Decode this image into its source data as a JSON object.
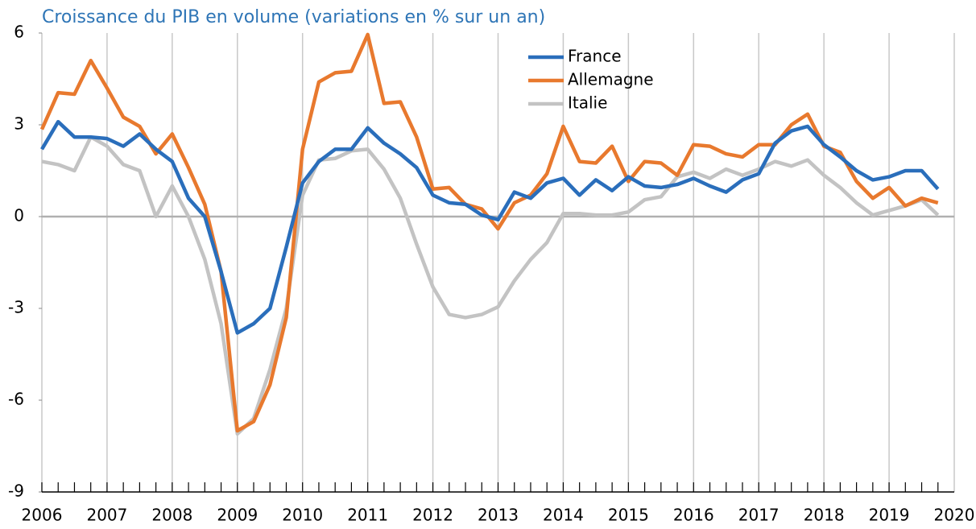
{
  "chart_data": {
    "type": "line",
    "title": "Croissance du PIB en volume (variations en % sur un an)",
    "x": [
      2006,
      2006.25,
      2006.5,
      2006.75,
      2007,
      2007.25,
      2007.5,
      2007.75,
      2008,
      2008.25,
      2008.5,
      2008.75,
      2009,
      2009.25,
      2009.5,
      2009.75,
      2010,
      2010.25,
      2010.5,
      2010.75,
      2011,
      2011.25,
      2011.5,
      2011.75,
      2012,
      2012.25,
      2012.5,
      2012.75,
      2013,
      2013.25,
      2013.5,
      2013.75,
      2014,
      2014.25,
      2014.5,
      2014.75,
      2015,
      2015.25,
      2015.5,
      2015.75,
      2016,
      2016.25,
      2016.5,
      2016.75,
      2017,
      2017.25,
      2017.5,
      2017.75,
      2018,
      2018.25,
      2018.5,
      2018.75,
      2019,
      2019.25,
      2019.5,
      2019.75
    ],
    "series": [
      {
        "name": "France",
        "color": "#2a6ebb",
        "values": [
          2.2,
          3.1,
          2.6,
          2.6,
          2.55,
          2.3,
          2.7,
          2.2,
          1.8,
          0.6,
          0.0,
          -1.8,
          -3.8,
          -3.5,
          -3.0,
          -1.0,
          1.1,
          1.8,
          2.2,
          2.2,
          2.9,
          2.4,
          2.05,
          1.6,
          0.7,
          0.45,
          0.4,
          0.05,
          -0.1,
          0.8,
          0.6,
          1.1,
          1.25,
          0.7,
          1.2,
          0.85,
          1.3,
          1.0,
          0.95,
          1.05,
          1.25,
          1.0,
          0.8,
          1.2,
          1.4,
          2.4,
          2.8,
          2.95,
          2.35,
          1.95,
          1.5,
          1.2,
          1.3,
          1.5,
          1.5,
          0.9
        ]
      },
      {
        "name": "Allemagne",
        "color": "#e8792e",
        "values": [
          2.85,
          4.05,
          4.0,
          5.1,
          4.2,
          3.25,
          2.95,
          2.05,
          2.7,
          1.6,
          0.4,
          -1.8,
          -7.0,
          -6.7,
          -5.5,
          -3.3,
          2.2,
          4.4,
          4.7,
          4.75,
          5.95,
          3.7,
          3.75,
          2.6,
          0.9,
          0.95,
          0.4,
          0.25,
          -0.4,
          0.45,
          0.7,
          1.4,
          2.95,
          1.8,
          1.75,
          2.3,
          1.15,
          1.8,
          1.75,
          1.35,
          2.35,
          2.3,
          2.05,
          1.95,
          2.35,
          2.35,
          3.0,
          3.35,
          2.3,
          2.1,
          1.15,
          0.6,
          0.95,
          0.35,
          0.6,
          0.45
        ]
      },
      {
        "name": "Italie",
        "color": "#c3c3c3",
        "values": [
          1.8,
          1.7,
          1.5,
          2.6,
          2.3,
          1.7,
          1.5,
          0.0,
          1.0,
          0.0,
          -1.4,
          -3.5,
          -7.1,
          -6.6,
          -5.0,
          -3.0,
          0.7,
          1.85,
          1.9,
          2.15,
          2.2,
          1.55,
          0.6,
          -0.9,
          -2.3,
          -3.2,
          -3.3,
          -3.2,
          -2.95,
          -2.1,
          -1.4,
          -0.85,
          0.1,
          0.1,
          0.05,
          0.05,
          0.15,
          0.55,
          0.65,
          1.3,
          1.45,
          1.25,
          1.55,
          1.35,
          1.55,
          1.8,
          1.65,
          1.85,
          1.35,
          0.95,
          0.45,
          0.05,
          0.2,
          0.35,
          0.55,
          0.05
        ]
      }
    ],
    "xlim": [
      2006,
      2020
    ],
    "xticks": [
      2006,
      2007,
      2008,
      2009,
      2010,
      2011,
      2012,
      2013,
      2014,
      2015,
      2016,
      2017,
      2018,
      2019,
      2020
    ],
    "ylim": [
      -9,
      6
    ],
    "yticks": [
      -9,
      -6,
      -3,
      0,
      3,
      6
    ],
    "grid": true,
    "legend": "top"
  }
}
